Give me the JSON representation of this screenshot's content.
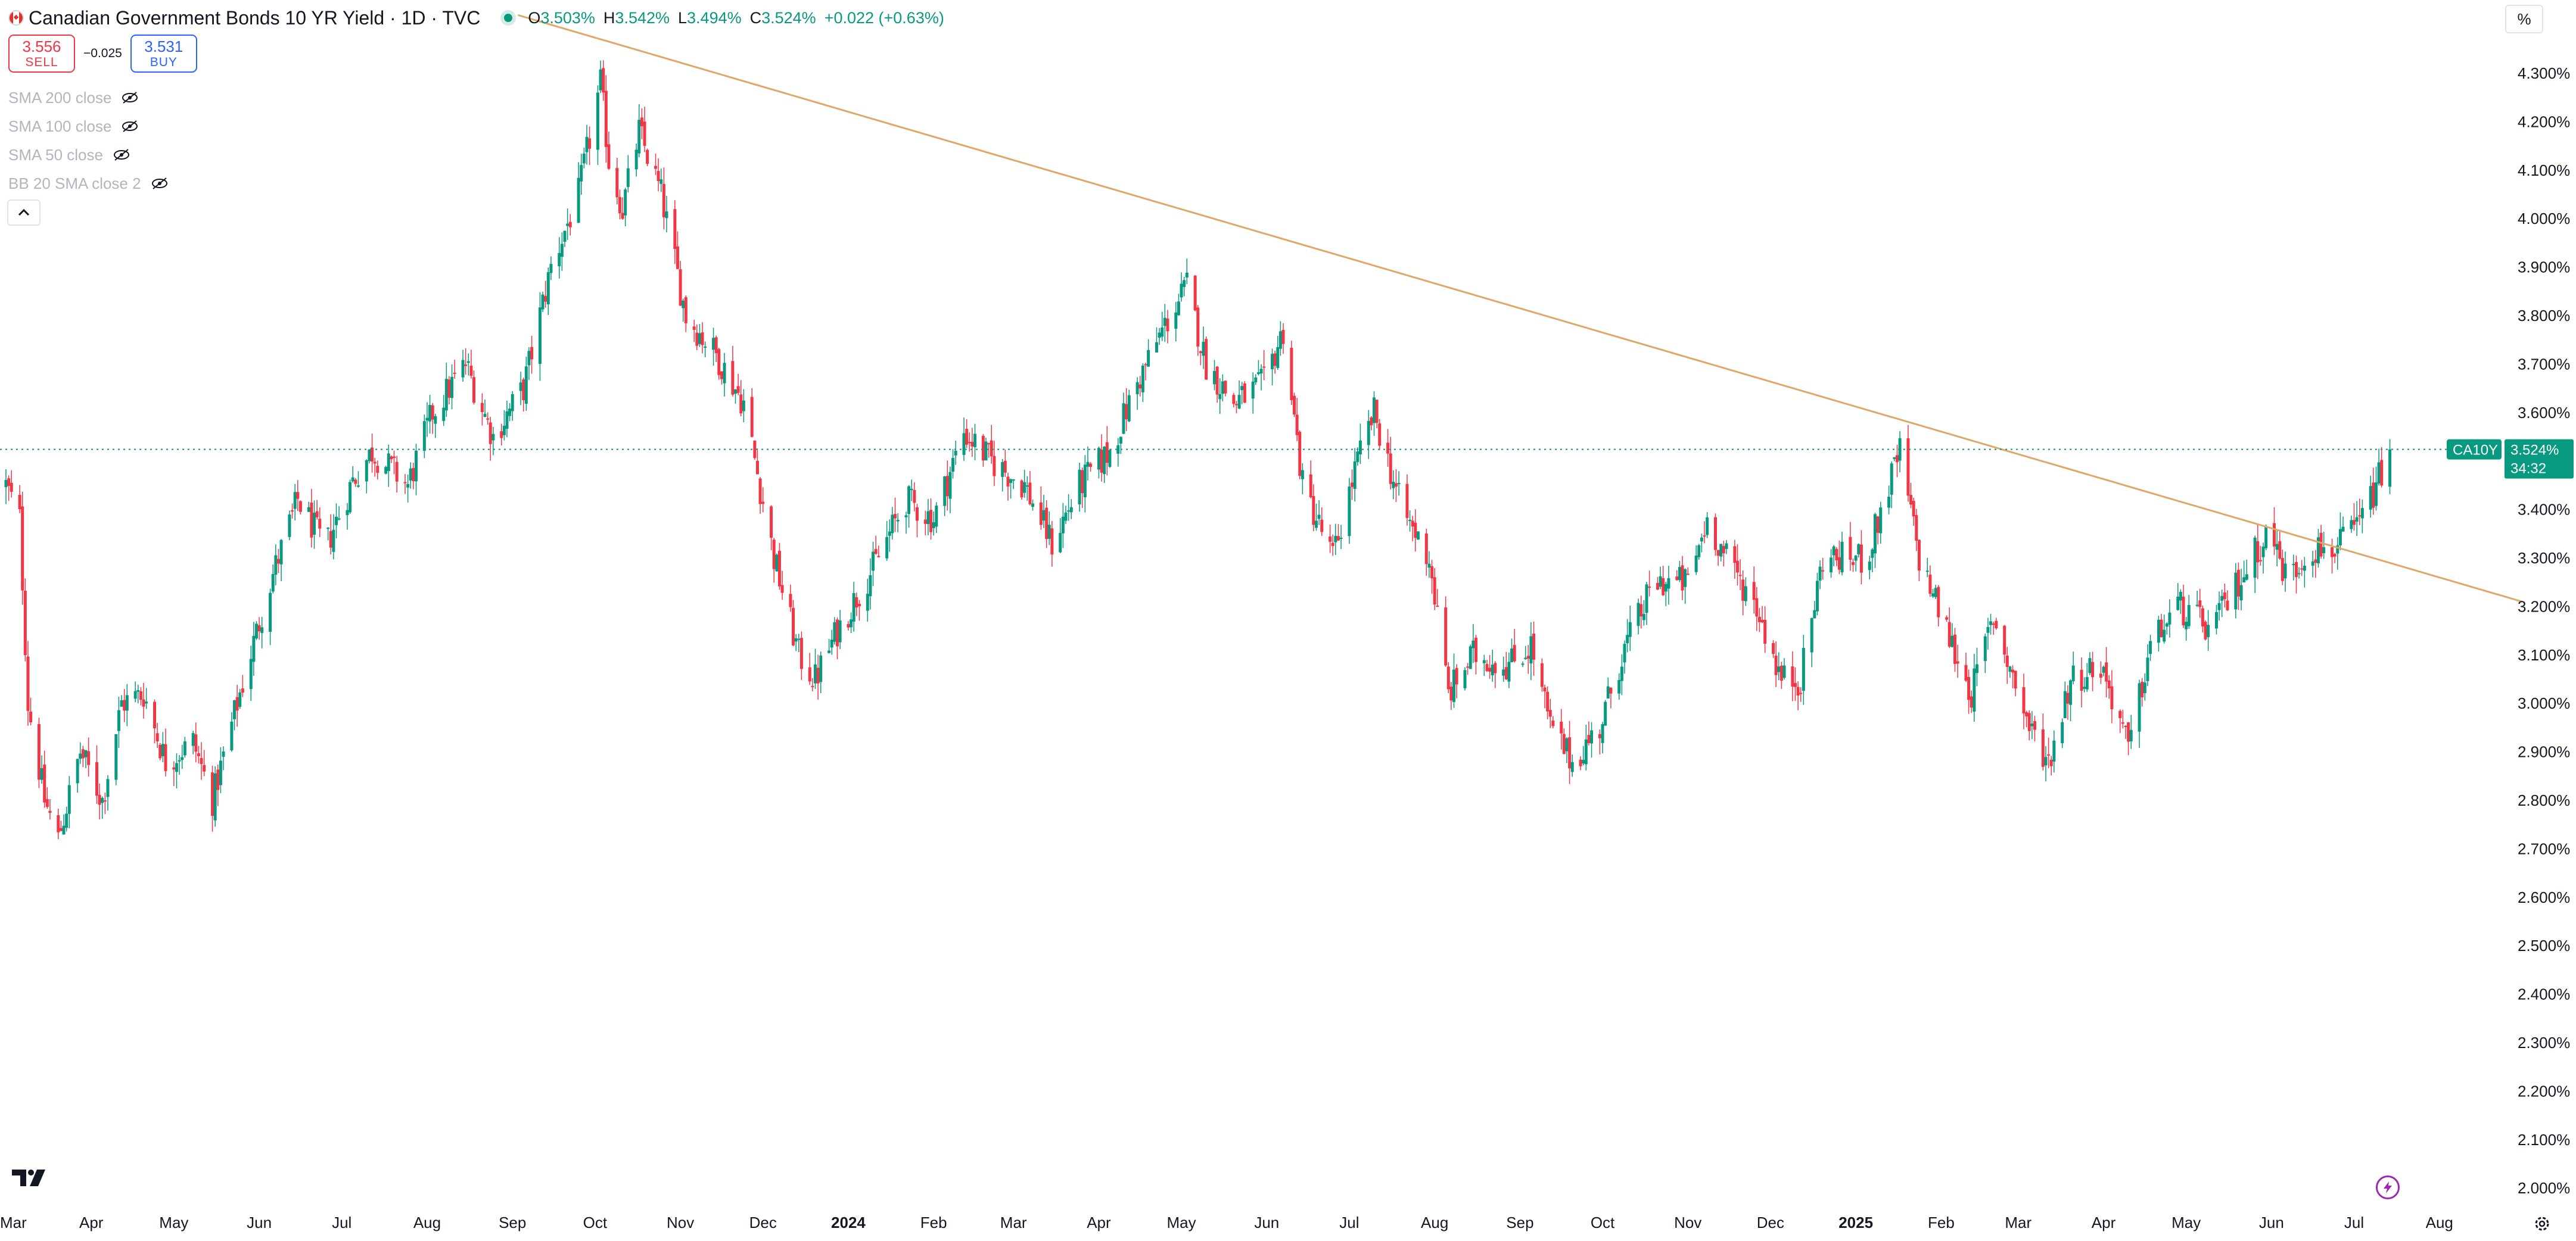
{
  "header": {
    "title": "Canadian Government Bonds 10 YR Yield · 1D · TVC",
    "ohlc": [
      {
        "label": "O",
        "value": "3.503%"
      },
      {
        "label": "H",
        "value": "3.542%"
      },
      {
        "label": "L",
        "value": "3.494%"
      },
      {
        "label": "C",
        "value": "3.524%"
      }
    ],
    "change": "+0.022 (+0.63%)"
  },
  "trade": {
    "sell_price": "3.556",
    "sell_label": "SELL",
    "spread": "−0.025",
    "buy_price": "3.531",
    "buy_label": "BUY"
  },
  "indicators": [
    {
      "label": "SMA 200 close"
    },
    {
      "label": "SMA 100 close"
    },
    {
      "label": "SMA 50 close"
    },
    {
      "label": "BB 20 SMA close 2"
    }
  ],
  "toolbar": {
    "scale_mode_label": "%"
  },
  "icons": {
    "flag": "canada-flag-icon",
    "live": "live-dot-icon",
    "eye": "eye-crossed-icon",
    "collapse": "chevron-up-icon",
    "logo": "tradingview-logo-icon",
    "bolt": "lightning-icon",
    "settings": "gear-icon"
  },
  "colors": {
    "up": "#089981",
    "down": "#f23645",
    "trendline": "#e0a866",
    "price_line": "#089981",
    "axis_text": "#131722",
    "grid": "none"
  },
  "chart_data": {
    "type": "candlestick",
    "title": "Canadian Government Bonds 10 YR Yield",
    "interval": "1D",
    "xlabel": "",
    "ylabel": "",
    "ylim": [
      1.95,
      4.35
    ],
    "y_ticks": [
      "2.000%",
      "2.100%",
      "2.200%",
      "2.300%",
      "2.400%",
      "2.500%",
      "2.600%",
      "2.700%",
      "2.800%",
      "2.900%",
      "3.000%",
      "3.100%",
      "3.200%",
      "3.300%",
      "3.400%",
      "3.500%",
      "3.600%",
      "3.700%",
      "3.800%",
      "3.900%",
      "4.000%",
      "4.100%",
      "4.200%",
      "4.300%"
    ],
    "x_ticks": [
      {
        "label": "Mar",
        "date": "2023-03-01",
        "bold": false
      },
      {
        "label": "Apr",
        "date": "2023-04-01",
        "bold": false
      },
      {
        "label": "May",
        "date": "2023-05-01",
        "bold": false
      },
      {
        "label": "Jun",
        "date": "2023-06-01",
        "bold": false
      },
      {
        "label": "Jul",
        "date": "2023-07-01",
        "bold": false
      },
      {
        "label": "Aug",
        "date": "2023-08-01",
        "bold": false
      },
      {
        "label": "Sep",
        "date": "2023-09-01",
        "bold": false
      },
      {
        "label": "Oct",
        "date": "2023-10-01",
        "bold": false
      },
      {
        "label": "Nov",
        "date": "2023-11-01",
        "bold": false
      },
      {
        "label": "Dec",
        "date": "2023-12-01",
        "bold": false
      },
      {
        "label": "2024",
        "date": "2024-01-01",
        "bold": true
      },
      {
        "label": "Feb",
        "date": "2024-02-01",
        "bold": false
      },
      {
        "label": "Mar",
        "date": "2024-03-01",
        "bold": false
      },
      {
        "label": "Apr",
        "date": "2024-04-01",
        "bold": false
      },
      {
        "label": "May",
        "date": "2024-05-01",
        "bold": false
      },
      {
        "label": "Jun",
        "date": "2024-06-01",
        "bold": false
      },
      {
        "label": "Jul",
        "date": "2024-07-01",
        "bold": false
      },
      {
        "label": "Aug",
        "date": "2024-08-01",
        "bold": false
      },
      {
        "label": "Sep",
        "date": "2024-09-01",
        "bold": false
      },
      {
        "label": "Oct",
        "date": "2024-10-01",
        "bold": false
      },
      {
        "label": "Nov",
        "date": "2024-11-01",
        "bold": false
      },
      {
        "label": "Dec",
        "date": "2024-12-01",
        "bold": false
      },
      {
        "label": "2025",
        "date": "2025-01-01",
        "bold": true
      },
      {
        "label": "Feb",
        "date": "2025-02-01",
        "bold": false
      },
      {
        "label": "Mar",
        "date": "2025-03-01",
        "bold": false
      },
      {
        "label": "Apr",
        "date": "2025-04-01",
        "bold": false
      },
      {
        "label": "May",
        "date": "2025-05-01",
        "bold": false
      },
      {
        "label": "Jun",
        "date": "2025-06-01",
        "bold": false
      },
      {
        "label": "Jul",
        "date": "2025-07-01",
        "bold": false
      },
      {
        "label": "Aug",
        "date": "2025-08-01",
        "bold": false
      }
    ],
    "x_range": [
      "2023-03-01",
      "2025-09-01"
    ],
    "anchors": [
      [
        "2023-03-01",
        3.45
      ],
      [
        "2023-03-06",
        3.38
      ],
      [
        "2023-03-09",
        3.0
      ],
      [
        "2023-03-15",
        2.8
      ],
      [
        "2023-03-20",
        2.72
      ],
      [
        "2023-03-28",
        2.9
      ],
      [
        "2023-04-05",
        2.8
      ],
      [
        "2023-04-12",
        3.0
      ],
      [
        "2023-04-20",
        3.02
      ],
      [
        "2023-04-28",
        2.88
      ],
      [
        "2023-05-08",
        2.92
      ],
      [
        "2023-05-15",
        2.8
      ],
      [
        "2023-05-24",
        3.0
      ],
      [
        "2023-06-05",
        3.25
      ],
      [
        "2023-06-15",
        3.42
      ],
      [
        "2023-06-25",
        3.32
      ],
      [
        "2023-07-05",
        3.46
      ],
      [
        "2023-07-12",
        3.52
      ],
      [
        "2023-07-25",
        3.45
      ],
      [
        "2023-08-03",
        3.6
      ],
      [
        "2023-08-15",
        3.7
      ],
      [
        "2023-08-25",
        3.55
      ],
      [
        "2023-09-05",
        3.65
      ],
      [
        "2023-09-15",
        3.9
      ],
      [
        "2023-09-25",
        4.05
      ],
      [
        "2023-10-03",
        4.28
      ],
      [
        "2023-10-06",
        4.12
      ],
      [
        "2023-10-11",
        4.02
      ],
      [
        "2023-10-17",
        4.18
      ],
      [
        "2023-10-25",
        4.05
      ],
      [
        "2023-11-03",
        3.8
      ],
      [
        "2023-11-14",
        3.72
      ],
      [
        "2023-11-24",
        3.62
      ],
      [
        "2023-12-05",
        3.3
      ],
      [
        "2023-12-14",
        3.1
      ],
      [
        "2023-12-20",
        3.05
      ],
      [
        "2023-12-28",
        3.15
      ],
      [
        "2024-01-10",
        3.28
      ],
      [
        "2024-01-22",
        3.42
      ],
      [
        "2024-02-01",
        3.38
      ],
      [
        "2024-02-12",
        3.56
      ],
      [
        "2024-02-22",
        3.5
      ],
      [
        "2024-03-05",
        3.45
      ],
      [
        "2024-03-15",
        3.33
      ],
      [
        "2024-03-25",
        3.45
      ],
      [
        "2024-04-05",
        3.52
      ],
      [
        "2024-04-15",
        3.66
      ],
      [
        "2024-04-25",
        3.78
      ],
      [
        "2024-05-03",
        3.86
      ],
      [
        "2024-05-10",
        3.7
      ],
      [
        "2024-05-20",
        3.62
      ],
      [
        "2024-05-31",
        3.66
      ],
      [
        "2024-06-07",
        3.77
      ],
      [
        "2024-06-14",
        3.45
      ],
      [
        "2024-06-25",
        3.3
      ],
      [
        "2024-07-03",
        3.48
      ],
      [
        "2024-07-10",
        3.6
      ],
      [
        "2024-07-20",
        3.4
      ],
      [
        "2024-07-30",
        3.3
      ],
      [
        "2024-08-06",
        3.02
      ],
      [
        "2024-08-15",
        3.1
      ],
      [
        "2024-08-28",
        3.08
      ],
      [
        "2024-09-05",
        3.12
      ],
      [
        "2024-09-12",
        2.95
      ],
      [
        "2024-09-20",
        2.88
      ],
      [
        "2024-09-30",
        2.95
      ],
      [
        "2024-10-08",
        3.1
      ],
      [
        "2024-10-20",
        3.25
      ],
      [
        "2024-11-01",
        3.25
      ],
      [
        "2024-11-08",
        3.38
      ],
      [
        "2024-11-15",
        3.3
      ],
      [
        "2024-11-26",
        3.2
      ],
      [
        "2024-12-05",
        3.05
      ],
      [
        "2024-12-12",
        3.05
      ],
      [
        "2024-12-20",
        3.3
      ],
      [
        "2025-01-05",
        3.3
      ],
      [
        "2025-01-13",
        3.45
      ],
      [
        "2025-01-17",
        3.52
      ],
      [
        "2025-01-24",
        3.3
      ],
      [
        "2025-02-05",
        3.12
      ],
      [
        "2025-02-12",
        3.02
      ],
      [
        "2025-02-20",
        3.18
      ],
      [
        "2025-03-05",
        2.95
      ],
      [
        "2025-03-12",
        2.88
      ],
      [
        "2025-03-20",
        3.05
      ],
      [
        "2025-03-31",
        3.08
      ],
      [
        "2025-04-08",
        2.95
      ],
      [
        "2025-04-10",
        2.9
      ],
      [
        "2025-04-18",
        3.12
      ],
      [
        "2025-04-28",
        3.2
      ],
      [
        "2025-05-10",
        3.15
      ],
      [
        "2025-05-20",
        3.25
      ],
      [
        "2025-05-31",
        3.36
      ],
      [
        "2025-06-07",
        3.25
      ],
      [
        "2025-06-14",
        3.32
      ],
      [
        "2025-06-25",
        3.32
      ],
      [
        "2025-07-03",
        3.37
      ],
      [
        "2025-07-09",
        3.45
      ],
      [
        "2025-07-14",
        3.52
      ]
    ],
    "trendline": {
      "start": [
        "2023-09-03",
        4.42
      ],
      "end": [
        "2025-08-31",
        3.21
      ]
    },
    "last_price": {
      "value": 3.524,
      "symbol": "CA10Y",
      "label": "3.524%",
      "countdown": "34:32"
    }
  }
}
